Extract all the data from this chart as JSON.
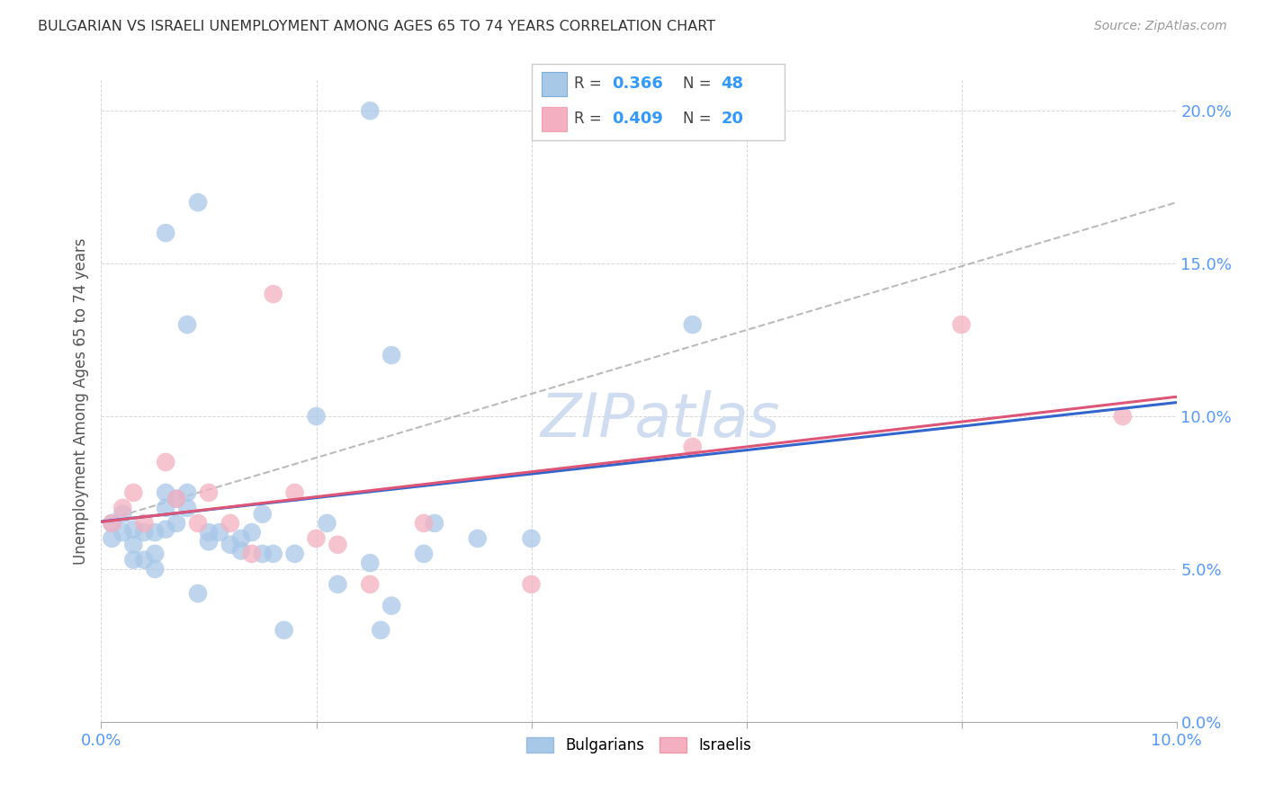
{
  "title": "BULGARIAN VS ISRAELI UNEMPLOYMENT AMONG AGES 65 TO 74 YEARS CORRELATION CHART",
  "source": "Source: ZipAtlas.com",
  "ylabel": "Unemployment Among Ages 65 to 74 years",
  "xlim": [
    0.0,
    0.1
  ],
  "ylim": [
    0.0,
    0.21
  ],
  "xtick_vals": [
    0.0,
    0.02,
    0.04,
    0.06,
    0.08,
    0.1
  ],
  "xtick_labels_shown": [
    "0.0%",
    "",
    "",
    "",
    "",
    "10.0%"
  ],
  "ytick_vals": [
    0.0,
    0.05,
    0.1,
    0.15,
    0.2
  ],
  "ytick_labels": [
    "0.0%",
    "5.0%",
    "10.0%",
    "15.0%",
    "20.0%"
  ],
  "bulgarian_R": 0.366,
  "bulgarian_N": 48,
  "israeli_R": 0.409,
  "israeli_N": 20,
  "bulgarian_color": "#a8c8e8",
  "israeli_color": "#f4b0c0",
  "bulgarian_line_color": "#3366cc",
  "israeli_line_color": "#dd5577",
  "dashed_line_color": "#aaaaaa",
  "tick_label_color": "#5599ff",
  "watermark_color": "#d0ddf0",
  "bulgarian_x": [
    0.001,
    0.001,
    0.002,
    0.002,
    0.003,
    0.003,
    0.003,
    0.004,
    0.004,
    0.005,
    0.005,
    0.005,
    0.006,
    0.006,
    0.006,
    0.007,
    0.007,
    0.008,
    0.008,
    0.009,
    0.01,
    0.01,
    0.011,
    0.012,
    0.013,
    0.013,
    0.014,
    0.015,
    0.015,
    0.016,
    0.017,
    0.018,
    0.02,
    0.021,
    0.022,
    0.025,
    0.026,
    0.027,
    0.027,
    0.03,
    0.031,
    0.035,
    0.04,
    0.055,
    0.025,
    0.009,
    0.006,
    0.008
  ],
  "bulgarian_y": [
    0.065,
    0.06,
    0.068,
    0.062,
    0.063,
    0.058,
    0.053,
    0.053,
    0.062,
    0.055,
    0.05,
    0.062,
    0.063,
    0.07,
    0.075,
    0.073,
    0.065,
    0.07,
    0.075,
    0.042,
    0.062,
    0.059,
    0.062,
    0.058,
    0.06,
    0.056,
    0.062,
    0.068,
    0.055,
    0.055,
    0.03,
    0.055,
    0.1,
    0.065,
    0.045,
    0.052,
    0.03,
    0.038,
    0.12,
    0.055,
    0.065,
    0.06,
    0.06,
    0.13,
    0.2,
    0.17,
    0.16,
    0.13
  ],
  "israeli_x": [
    0.001,
    0.002,
    0.003,
    0.004,
    0.006,
    0.007,
    0.009,
    0.01,
    0.012,
    0.014,
    0.016,
    0.018,
    0.02,
    0.022,
    0.025,
    0.03,
    0.04,
    0.055,
    0.08,
    0.095
  ],
  "israeli_y": [
    0.065,
    0.07,
    0.075,
    0.065,
    0.085,
    0.073,
    0.065,
    0.075,
    0.065,
    0.055,
    0.14,
    0.075,
    0.06,
    0.058,
    0.045,
    0.065,
    0.045,
    0.09,
    0.13,
    0.1
  ]
}
